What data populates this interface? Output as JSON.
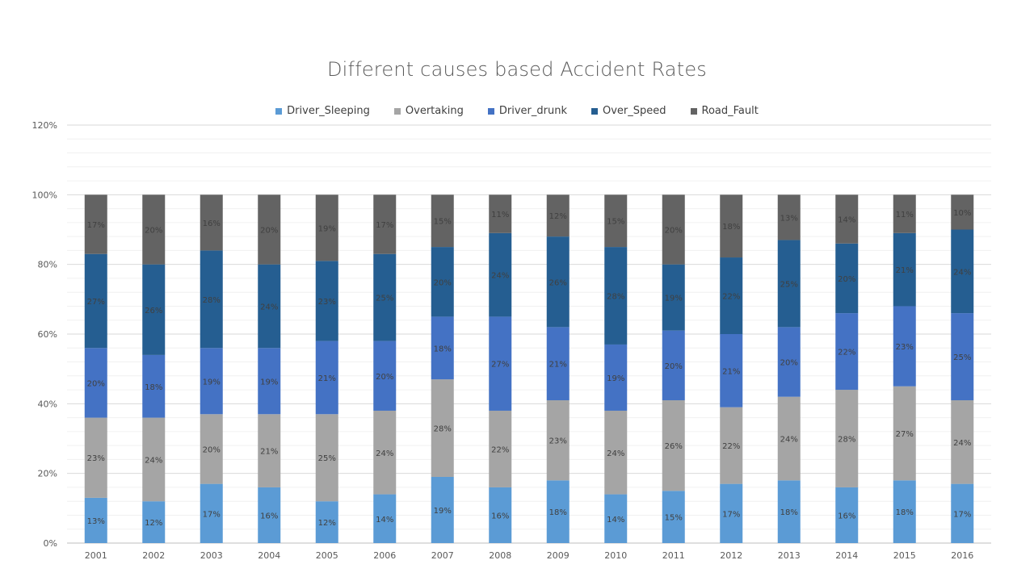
{
  "chart_data": {
    "type": "bar",
    "stacked": true,
    "title": "Different causes based Accident Rates",
    "xlabel": "",
    "ylabel": "",
    "categories": [
      "2001",
      "2002",
      "2003",
      "2004",
      "2005",
      "2006",
      "2007",
      "2008",
      "2009",
      "2010",
      "2011",
      "2012",
      "2013",
      "2014",
      "2015",
      "2016"
    ],
    "ylim": [
      0,
      120
    ],
    "yticks": [
      "0%",
      "20%",
      "40%",
      "60%",
      "80%",
      "100%",
      "120%"
    ],
    "legend_position": "top",
    "grid": true,
    "series": [
      {
        "name": "Driver_Sleeping",
        "color": "#5b9bd5",
        "values": [
          13,
          12,
          17,
          16,
          12,
          14,
          19,
          16,
          18,
          14,
          15,
          17,
          18,
          16,
          18,
          17
        ]
      },
      {
        "name": "Overtaking",
        "color": "#a5a5a5",
        "values": [
          23,
          24,
          20,
          21,
          25,
          24,
          28,
          22,
          23,
          24,
          26,
          22,
          24,
          28,
          27,
          24
        ]
      },
      {
        "name": "Driver_drunk",
        "color": "#4472c4",
        "values": [
          20,
          18,
          19,
          19,
          21,
          20,
          18,
          27,
          21,
          19,
          20,
          21,
          20,
          22,
          23,
          25
        ]
      },
      {
        "name": "Over_Speed",
        "color": "#255e91",
        "values": [
          27,
          26,
          28,
          24,
          23,
          25,
          20,
          24,
          26,
          28,
          19,
          22,
          25,
          20,
          21,
          24
        ]
      },
      {
        "name": "Road_Fault",
        "color": "#636363",
        "values": [
          17,
          20,
          16,
          20,
          19,
          17,
          15,
          11,
          12,
          15,
          20,
          18,
          13,
          14,
          11,
          10
        ]
      }
    ]
  }
}
